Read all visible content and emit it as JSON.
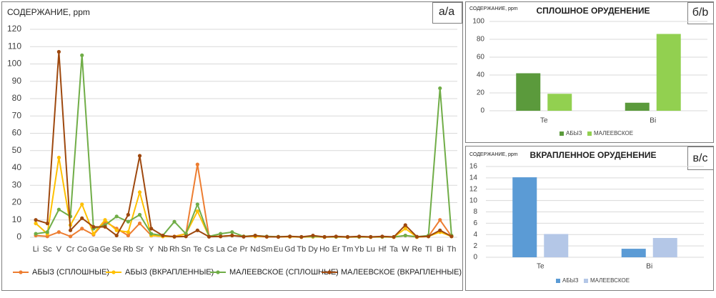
{
  "chart_data": [
    {
      "type": "line",
      "panel": "а/а",
      "y_label": "СОДЕРЖАНИЕ, ppm",
      "categories": [
        "Li",
        "Sc",
        "V",
        "Cr",
        "Co",
        "Ga",
        "Ge",
        "Se",
        "Rb",
        "Sr",
        "Y",
        "Nb",
        "Rh",
        "Sn",
        "Te",
        "Cs",
        "La",
        "Ce",
        "Pr",
        "Nd",
        "Sm",
        "Eu",
        "Gd",
        "Tb",
        "Dy",
        "Ho",
        "Er",
        "Tm",
        "Yb",
        "Lu",
        "Hf",
        "Ta",
        "W",
        "Re",
        "Tl",
        "Bi",
        "Th"
      ],
      "ylim": [
        0,
        120
      ],
      "yticks": [
        0,
        10,
        20,
        30,
        40,
        50,
        60,
        70,
        80,
        90,
        100,
        110,
        120
      ],
      "grid": true,
      "series": [
        {
          "name": "АБЫЗ (СПЛОШНЫЕ)",
          "color": "#ed7d31",
          "values": [
            1,
            0.5,
            3,
            0.5,
            5,
            1.5,
            9,
            5,
            1,
            8,
            1,
            0.5,
            0.5,
            2,
            42,
            0.5,
            0.5,
            1,
            0.5,
            0.5,
            0.3,
            0.2,
            0.3,
            0.1,
            0.3,
            0.1,
            0.2,
            0.1,
            0.2,
            0.1,
            0.2,
            0.1,
            1,
            0.1,
            0.5,
            10,
            0.5
          ]
        },
        {
          "name": "АБЫЗ (ВКРАПЛЕННЫЕ)",
          "color": "#ffc000",
          "values": [
            8,
            2,
            46,
            7,
            19,
            2,
            10,
            4,
            3,
            26,
            1,
            0.5,
            0.3,
            2,
            15,
            0.5,
            0.5,
            1,
            0.5,
            0.5,
            0.3,
            0.2,
            0.3,
            0.1,
            0.3,
            0.1,
            0.2,
            0.1,
            0.2,
            0.1,
            0.2,
            0.1,
            5,
            0.1,
            0.5,
            3,
            0.5
          ]
        },
        {
          "name": "МАЛЕЕВСКОЕ (СПЛОШНЫЕ)",
          "color": "#70ad47",
          "values": [
            2,
            3,
            16,
            12,
            105,
            5,
            7,
            12,
            9,
            13,
            2,
            1,
            9,
            2,
            19,
            0.5,
            2,
            3,
            0.5,
            1,
            0.5,
            0.3,
            0.5,
            0.2,
            0.5,
            0.2,
            0.3,
            0.2,
            0.3,
            0.2,
            0.3,
            0.2,
            1,
            0.3,
            1,
            86,
            1
          ]
        },
        {
          "name": "МАЛЕЕВСКОЕ (ВКРАПЛЕННЫЕ)",
          "color": "#9e480e",
          "values": [
            10,
            8,
            107,
            4,
            11,
            6,
            6,
            1,
            13,
            47,
            5,
            1,
            0.3,
            0.5,
            4,
            0.3,
            0.5,
            1,
            0.3,
            1,
            0.3,
            0.2,
            0.5,
            0.2,
            1,
            0.2,
            0.5,
            0.2,
            0.5,
            0.2,
            0.5,
            0.2,
            7,
            0.3,
            0.5,
            4,
            0.5
          ]
        }
      ]
    },
    {
      "type": "bar",
      "panel": "б/b",
      "title": "СПЛОШНОЕ ОРУДЕНЕНИЕ",
      "y_label": "СОДЕРЖАНИЕ, ppm",
      "categories": [
        "Te",
        "Bi"
      ],
      "ylim": [
        0,
        100
      ],
      "yticks": [
        0,
        20,
        40,
        60,
        80,
        100
      ],
      "grid": true,
      "series": [
        {
          "name": "АБЫЗ",
          "color": "#5b9a3c",
          "values": [
            42,
            9
          ]
        },
        {
          "name": "МАЛЕЕВСКОЕ",
          "color": "#92d050",
          "values": [
            19,
            86
          ]
        }
      ]
    },
    {
      "type": "bar",
      "panel": "в/с",
      "title": "ВКРАПЛЕННОЕ ОРУДЕНЕНИЕ",
      "y_label": "СОДЕРЖАНИЕ, ppm",
      "categories": [
        "Te",
        "Bi"
      ],
      "ylim": [
        0,
        16
      ],
      "yticks": [
        0,
        2,
        4,
        6,
        8,
        10,
        12,
        14,
        16
      ],
      "grid": true,
      "series": [
        {
          "name": "АБЫЗ",
          "color": "#5b9bd5",
          "values": [
            14.1,
            1.5
          ]
        },
        {
          "name": "МАЛЕЕВСКОЕ",
          "color": "#b4c7e7",
          "values": [
            4.1,
            3.4
          ]
        }
      ]
    }
  ]
}
